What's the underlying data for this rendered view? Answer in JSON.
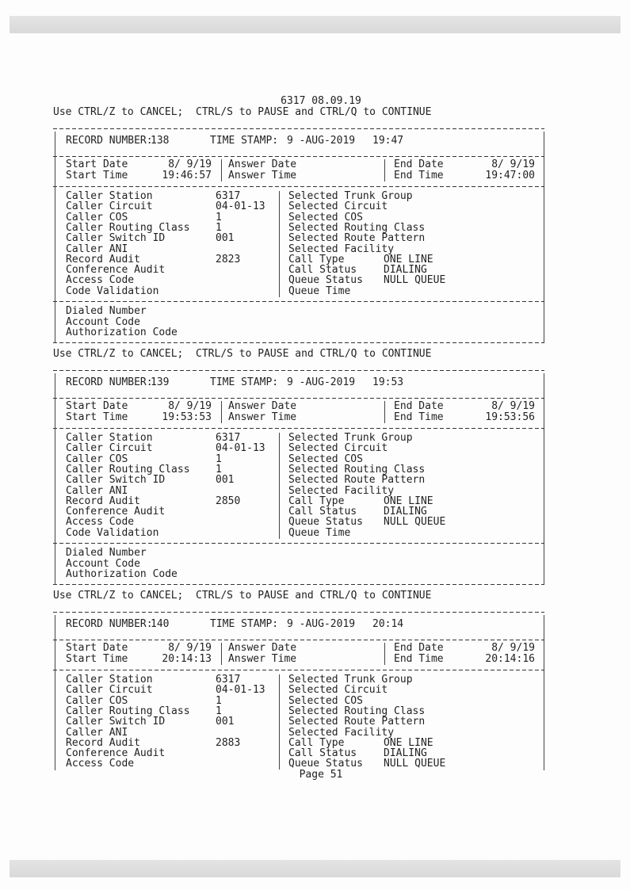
{
  "page_header": "6317 08.09.19",
  "control_line": "Use CTRL/Z to CANCEL;  CTRL/S to PAUSE and CTRL/Q to CONTINUE",
  "page_footer": "Page 51",
  "labels": {
    "record_number": "RECORD NUMBER:",
    "time_stamp": "TIME STAMP:",
    "start_date": "Start Date",
    "start_time": "Start Time",
    "answer_date": "Answer Date",
    "answer_time": "Answer Time",
    "end_date": "End Date",
    "end_time": "End Time",
    "caller_fields": [
      "Caller Station",
      "Caller Circuit",
      "Caller COS",
      "Caller Routing Class",
      "Caller Switch ID",
      "Caller ANI",
      "Record Audit",
      "Conference Audit",
      "Access Code",
      "Code Validation"
    ],
    "selected_fields": [
      "Selected Trunk Group",
      "Selected Circuit",
      "Selected COS",
      "Selected Routing Class",
      "Selected Route Pattern",
      "Selected Facility",
      "Call Type",
      "Call Status",
      "Queue Status",
      "Queue Time"
    ],
    "dial_fields": [
      "Dialed Number",
      "Account Code",
      "Authorization Code"
    ]
  },
  "records": [
    {
      "record_number": "138",
      "ts_date": "9 -AUG-2019",
      "ts_time": "19:47",
      "start_date": "8/ 9/19",
      "start_time": "19:46:57",
      "end_date": "8/ 9/19",
      "end_time": "19:47:00",
      "caller_values": [
        "6317",
        "04-01-13",
        "1",
        "1",
        "001",
        "",
        "2823",
        "",
        "",
        ""
      ],
      "selected_values": [
        "",
        "",
        "",
        "",
        "",
        "",
        "ONE LINE",
        "DIALING",
        "NULL QUEUE",
        ""
      ],
      "visible_rows": 10,
      "complete": true
    },
    {
      "record_number": "139",
      "ts_date": "9 -AUG-2019",
      "ts_time": "19:53",
      "start_date": "8/ 9/19",
      "start_time": "19:53:53",
      "end_date": "8/ 9/19",
      "end_time": "19:53:56",
      "caller_values": [
        "6317",
        "04-01-13",
        "1",
        "1",
        "001",
        "",
        "2850",
        "",
        "",
        ""
      ],
      "selected_values": [
        "",
        "",
        "",
        "",
        "",
        "",
        "ONE LINE",
        "DIALING",
        "NULL QUEUE",
        ""
      ],
      "visible_rows": 10,
      "complete": true
    },
    {
      "record_number": "140",
      "ts_date": "9 -AUG-2019",
      "ts_time": "20:14",
      "start_date": "8/ 9/19",
      "start_time": "20:14:13",
      "end_date": "8/ 9/19",
      "end_time": "20:14:16",
      "caller_values": [
        "6317",
        "04-01-13",
        "1",
        "1",
        "001",
        "",
        "2883",
        "",
        ""
      ],
      "selected_values": [
        "",
        "",
        "",
        "",
        "",
        "",
        "ONE LINE",
        "DIALING",
        "NULL QUEUE"
      ],
      "visible_rows": 9,
      "complete": false
    }
  ]
}
